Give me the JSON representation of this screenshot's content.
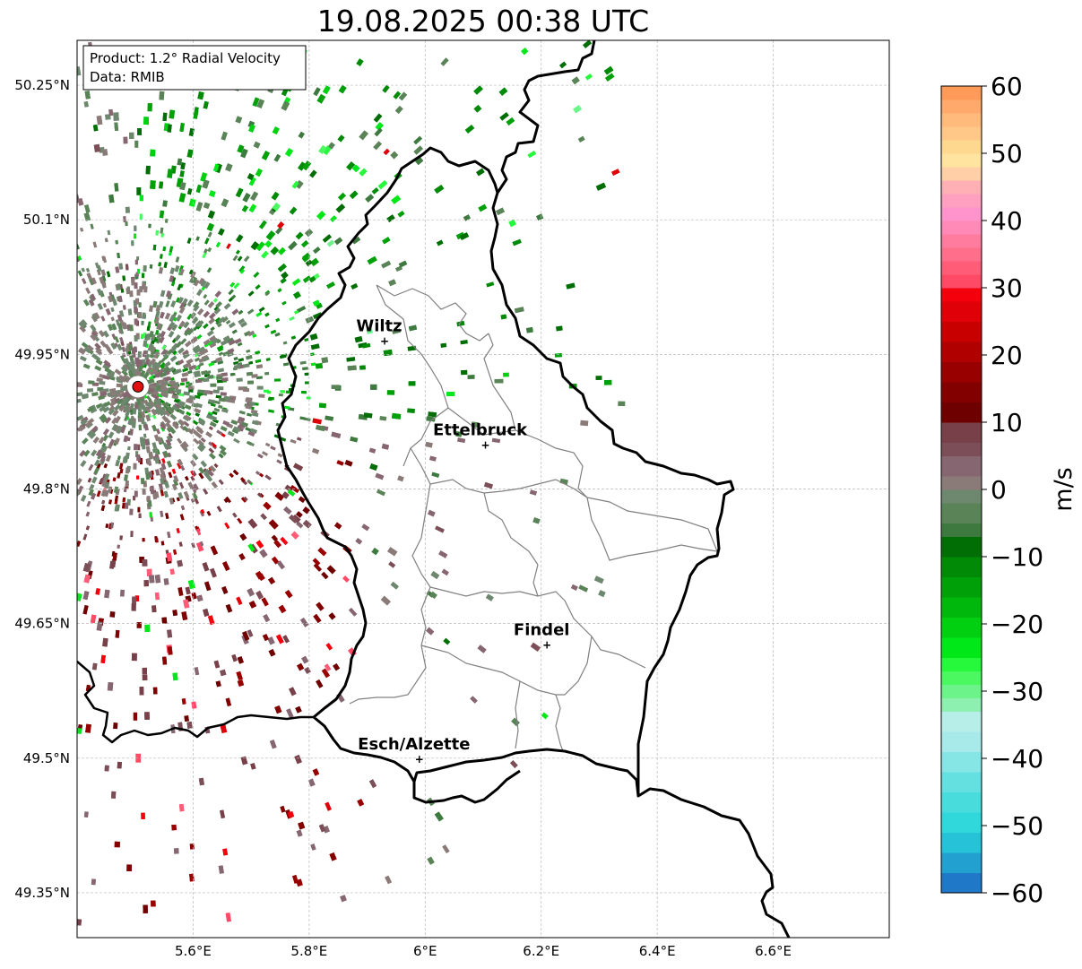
{
  "title": "19.08.2025 00:38 UTC",
  "info_box": {
    "product": "Product: 1.2° Radial Velocity",
    "data": "Data: RMIB"
  },
  "map": {
    "lon_range": [
      5.4,
      6.8
    ],
    "lat_range": [
      49.3,
      50.3
    ],
    "lat_ticks": [
      {
        "value": 50.25,
        "label": "50.25°N"
      },
      {
        "value": 50.1,
        "label": "50.1°N"
      },
      {
        "value": 49.95,
        "label": "49.95°N"
      },
      {
        "value": 49.8,
        "label": "49.8°N"
      },
      {
        "value": 49.65,
        "label": "49.65°N"
      },
      {
        "value": 49.5,
        "label": "49.5°N"
      },
      {
        "value": 49.35,
        "label": "49.35°N"
      }
    ],
    "lon_ticks": [
      {
        "value": 5.6,
        "label": "5.6°E"
      },
      {
        "value": 5.8,
        "label": "5.8°E"
      },
      {
        "value": 6.0,
        "label": "6°E"
      },
      {
        "value": 6.2,
        "label": "6.2°E"
      },
      {
        "value": 6.4,
        "label": "6.4°E"
      },
      {
        "value": 6.6,
        "label": "6.6°E"
      }
    ],
    "gridlines": true,
    "radar_site": {
      "lon": 5.505,
      "lat": 49.914
    },
    "cities": [
      {
        "name": "Wiltz",
        "lon": 5.93,
        "lat": 49.966
      },
      {
        "name": "Ettelbruck",
        "lon": 6.104,
        "lat": 49.85
      },
      {
        "name": "Findel",
        "lon": 6.21,
        "lat": 49.627
      },
      {
        "name": "Esch/Alzette",
        "lon": 5.99,
        "lat": 49.5
      }
    ]
  },
  "colorbar": {
    "label": "m/s",
    "min": -60,
    "max": 60,
    "ticks": [
      {
        "value": 60,
        "label": "60"
      },
      {
        "value": 50,
        "label": "50"
      },
      {
        "value": 40,
        "label": "40"
      },
      {
        "value": 30,
        "label": "30"
      },
      {
        "value": 20,
        "label": "20"
      },
      {
        "value": 10,
        "label": "10"
      },
      {
        "value": 0,
        "label": "0"
      },
      {
        "value": -10,
        "label": "−10"
      },
      {
        "value": -20,
        "label": "−20"
      },
      {
        "value": -30,
        "label": "−30"
      },
      {
        "value": -40,
        "label": "−40"
      },
      {
        "value": -50,
        "label": "−50"
      },
      {
        "value": -60,
        "label": "−60"
      }
    ],
    "segments": [
      {
        "from": -60,
        "to": -57,
        "color": "#1f78c8"
      },
      {
        "from": -57,
        "to": -54,
        "color": "#22a0d0"
      },
      {
        "from": -54,
        "to": -51,
        "color": "#26c2d8"
      },
      {
        "from": -51,
        "to": -48,
        "color": "#30d8dc"
      },
      {
        "from": -48,
        "to": -45,
        "color": "#48dcdc"
      },
      {
        "from": -45,
        "to": -42,
        "color": "#64e0e0"
      },
      {
        "from": -42,
        "to": -39,
        "color": "#86e6e6"
      },
      {
        "from": -39,
        "to": -36,
        "color": "#a8eaea"
      },
      {
        "from": -36,
        "to": -33,
        "color": "#b8eee8"
      },
      {
        "from": -33,
        "to": -31,
        "color": "#8ef0b0"
      },
      {
        "from": -31,
        "to": -29,
        "color": "#6cf48a"
      },
      {
        "from": -29,
        "to": -27,
        "color": "#4cf860"
      },
      {
        "from": -27,
        "to": -25,
        "color": "#26f83c"
      },
      {
        "from": -25,
        "to": -22,
        "color": "#00e818"
      },
      {
        "from": -22,
        "to": -19,
        "color": "#00d010"
      },
      {
        "from": -19,
        "to": -16,
        "color": "#00b80c"
      },
      {
        "from": -16,
        "to": -13,
        "color": "#00a008"
      },
      {
        "from": -13,
        "to": -10,
        "color": "#008a06"
      },
      {
        "from": -10,
        "to": -7,
        "color": "#006e04"
      },
      {
        "from": -7,
        "to": -5,
        "color": "#3e7a40"
      },
      {
        "from": -5,
        "to": -2,
        "color": "#5a8458"
      },
      {
        "from": -2,
        "to": 0,
        "color": "#6e8870"
      },
      {
        "from": 0,
        "to": 2,
        "color": "#8a7a78"
      },
      {
        "from": 2,
        "to": 5,
        "color": "#866670"
      },
      {
        "from": 5,
        "to": 7,
        "color": "#7c4e58"
      },
      {
        "from": 7,
        "to": 10,
        "color": "#784048"
      },
      {
        "from": 10,
        "to": 13,
        "color": "#6e0000"
      },
      {
        "from": 13,
        "to": 16,
        "color": "#820000"
      },
      {
        "from": 16,
        "to": 19,
        "color": "#980000"
      },
      {
        "from": 19,
        "to": 22,
        "color": "#b00000"
      },
      {
        "from": 22,
        "to": 25,
        "color": "#c80000"
      },
      {
        "from": 25,
        "to": 28,
        "color": "#e00008"
      },
      {
        "from": 28,
        "to": 30,
        "color": "#f4000c"
      },
      {
        "from": 30,
        "to": 32,
        "color": "#ff4a66"
      },
      {
        "from": 32,
        "to": 34,
        "color": "#ff5c78"
      },
      {
        "from": 34,
        "to": 36,
        "color": "#ff6e8a"
      },
      {
        "from": 36,
        "to": 38,
        "color": "#ff7c9e"
      },
      {
        "from": 38,
        "to": 40,
        "color": "#ff8ab8"
      },
      {
        "from": 40,
        "to": 42,
        "color": "#ff94cc"
      },
      {
        "from": 42,
        "to": 44,
        "color": "#ffa0c0"
      },
      {
        "from": 44,
        "to": 46,
        "color": "#ffb0b4"
      },
      {
        "from": 46,
        "to": 48,
        "color": "#ffd0a8"
      },
      {
        "from": 48,
        "to": 50,
        "color": "#ffe4a0"
      },
      {
        "from": 50,
        "to": 52,
        "color": "#ffd890"
      },
      {
        "from": 52,
        "to": 54,
        "color": "#ffc888"
      },
      {
        "from": 54,
        "to": 56,
        "color": "#ffba7c"
      },
      {
        "from": 56,
        "to": 58,
        "color": "#ffaa6c"
      },
      {
        "from": 58,
        "to": 60,
        "color": "#ff9a58"
      }
    ]
  }
}
